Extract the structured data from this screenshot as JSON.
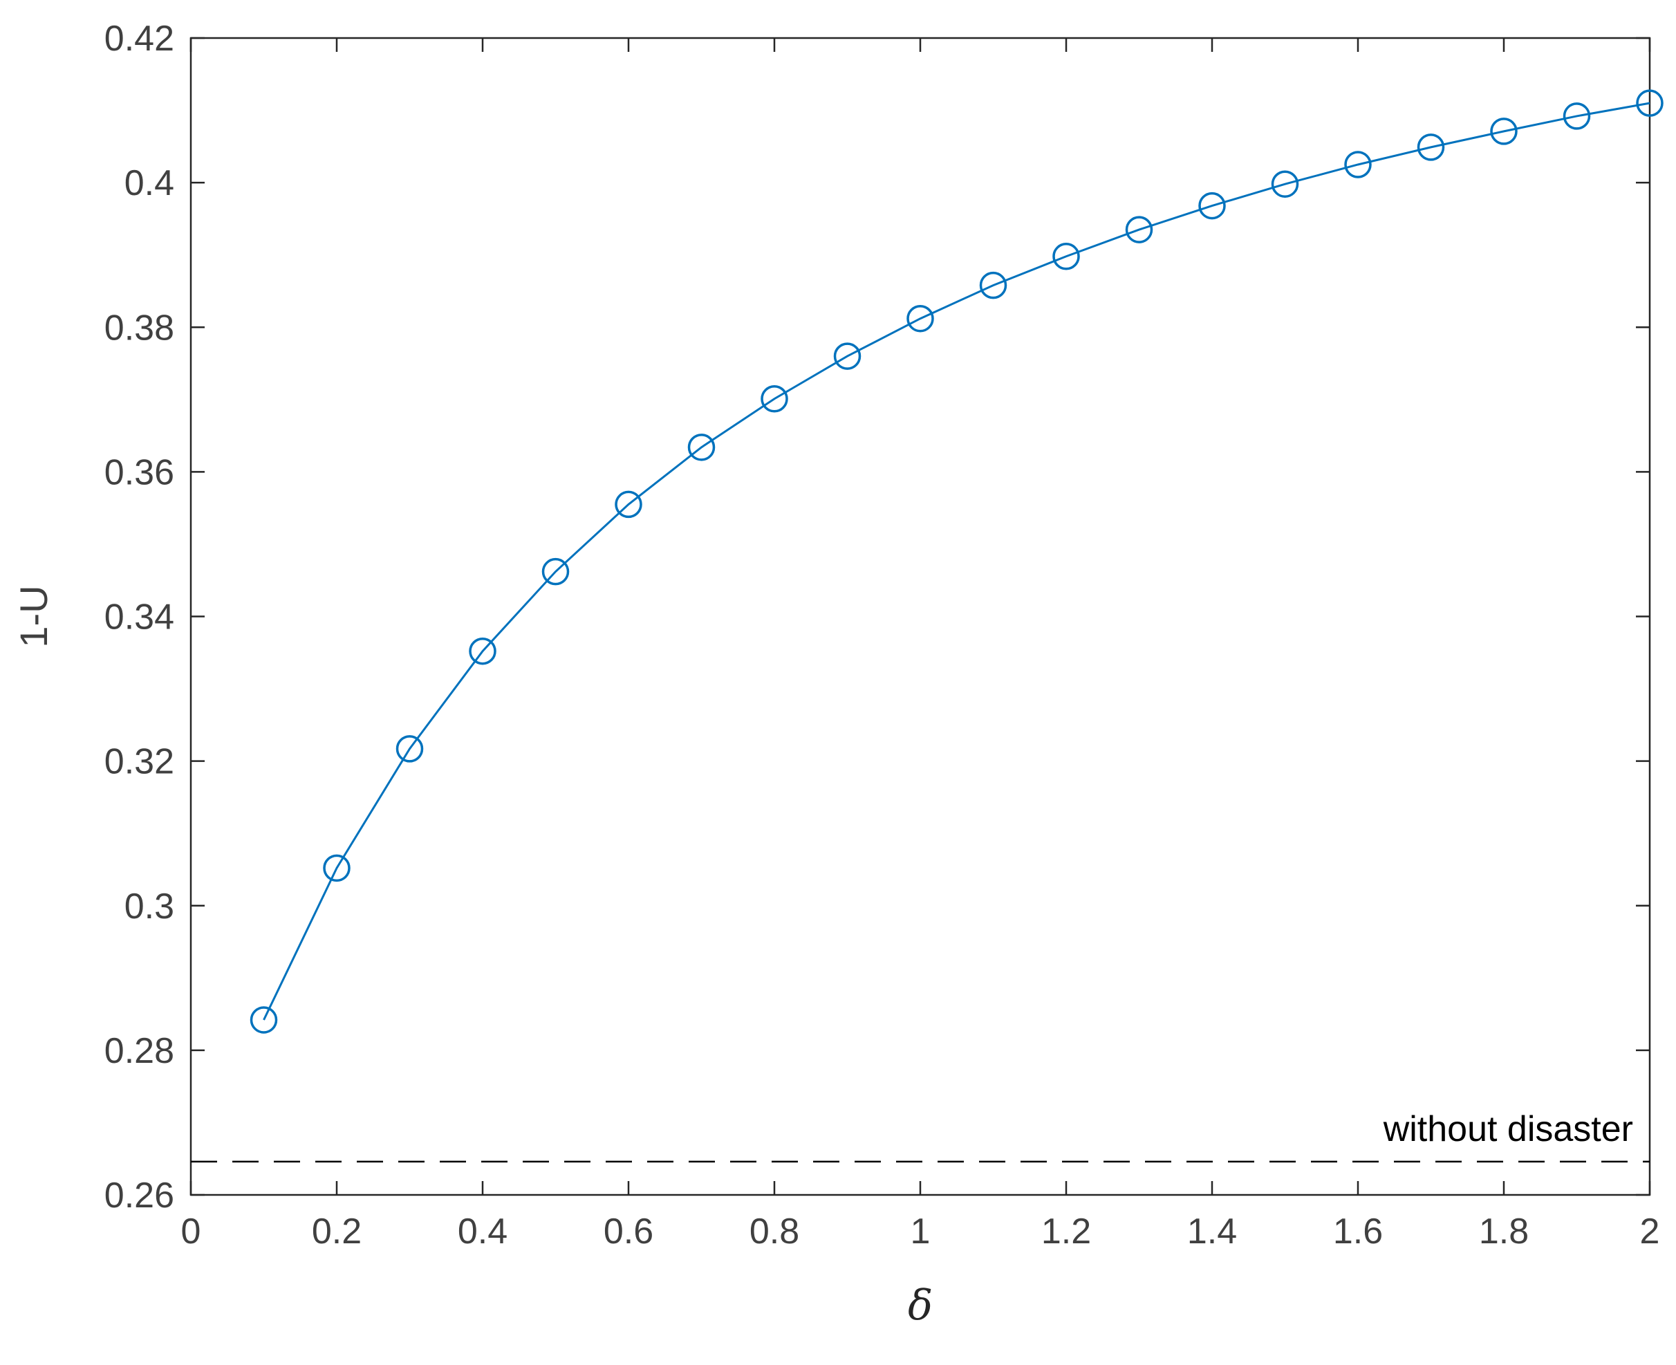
{
  "chart_data": {
    "type": "line",
    "title": "",
    "xlabel": "δ",
    "ylabel": "1-U",
    "xlim": [
      0,
      2
    ],
    "ylim": [
      0.26,
      0.42
    ],
    "xticks": [
      0,
      0.2,
      0.4,
      0.6,
      0.8,
      1,
      1.2,
      1.4,
      1.6,
      1.8,
      2
    ],
    "xtick_labels": [
      "0",
      "0.2",
      "0.4",
      "0.6",
      "0.8",
      "1",
      "1.2",
      "1.4",
      "1.6",
      "1.8",
      "2"
    ],
    "yticks": [
      0.26,
      0.28,
      0.3,
      0.32,
      0.34,
      0.36,
      0.38,
      0.4,
      0.42
    ],
    "ytick_labels": [
      "0.26",
      "0.28",
      "0.3",
      "0.32",
      "0.34",
      "0.36",
      "0.38",
      "0.4",
      "0.42"
    ],
    "grid": false,
    "series": [
      {
        "marker": "circle",
        "color": "#0072BD",
        "x": [
          0.1,
          0.2,
          0.3,
          0.4,
          0.5,
          0.6,
          0.7,
          0.8,
          0.9,
          1.0,
          1.1,
          1.2,
          1.3,
          1.4,
          1.5,
          1.6,
          1.7,
          1.8,
          1.9,
          2.0
        ],
        "y": [
          0.2842,
          0.3052,
          0.3217,
          0.3352,
          0.3462,
          0.3555,
          0.3634,
          0.3701,
          0.376,
          0.3812,
          0.3858,
          0.3898,
          0.3935,
          0.3968,
          0.3998,
          0.4025,
          0.4049,
          0.4071,
          0.4092,
          0.411
        ]
      }
    ],
    "reference_line": {
      "y": 0.2646,
      "style": "dashed",
      "color": "#000000",
      "label": "without disaster"
    }
  }
}
